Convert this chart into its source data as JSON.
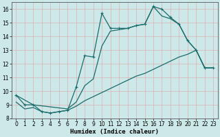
{
  "xlabel": "Humidex (Indice chaleur)",
  "ylabel": "",
  "bg_color": "#cce8e8",
  "grid_color": "#aacccc",
  "line_color": "#1a6b6b",
  "xlim": [
    -0.5,
    23.5
  ],
  "ylim": [
    8,
    16.5
  ],
  "xticks": [
    0,
    1,
    2,
    3,
    4,
    5,
    6,
    7,
    8,
    9,
    10,
    11,
    12,
    13,
    14,
    15,
    16,
    17,
    18,
    19,
    20,
    21,
    22,
    23
  ],
  "yticks": [
    8,
    9,
    10,
    11,
    12,
    13,
    14,
    15,
    16
  ],
  "curve1_x": [
    0,
    1,
    2,
    3,
    4,
    5,
    6,
    7,
    8,
    9,
    10,
    11,
    12,
    13,
    14,
    15,
    16,
    17,
    18,
    19,
    20,
    21,
    22,
    23
  ],
  "curve1_y": [
    9.7,
    9.0,
    9.0,
    8.5,
    8.4,
    8.5,
    8.6,
    10.3,
    12.6,
    12.5,
    15.7,
    14.6,
    14.6,
    14.6,
    14.8,
    14.9,
    16.2,
    16.0,
    15.4,
    14.9,
    13.7,
    13.0,
    11.7,
    11.7
  ],
  "curve2_x": [
    0,
    2,
    6,
    7,
    8,
    9,
    10,
    11,
    12,
    13,
    14,
    15,
    16,
    17,
    18,
    19,
    20,
    21,
    22,
    23
  ],
  "curve2_y": [
    9.7,
    9.0,
    8.7,
    9.2,
    10.4,
    10.9,
    13.3,
    14.4,
    14.5,
    14.6,
    14.8,
    14.9,
    16.2,
    15.5,
    15.3,
    14.9,
    13.7,
    13.0,
    11.7,
    11.7
  ],
  "curve3_x": [
    0,
    1,
    2,
    3,
    4,
    5,
    6,
    7,
    8,
    9,
    10,
    11,
    12,
    13,
    14,
    15,
    16,
    17,
    18,
    19,
    20,
    21,
    22,
    23
  ],
  "curve3_y": [
    9.2,
    8.7,
    8.8,
    8.5,
    8.4,
    8.5,
    8.6,
    8.9,
    9.3,
    9.6,
    9.9,
    10.2,
    10.5,
    10.8,
    11.1,
    11.3,
    11.6,
    11.9,
    12.2,
    12.5,
    12.7,
    13.0,
    11.7,
    11.7
  ]
}
